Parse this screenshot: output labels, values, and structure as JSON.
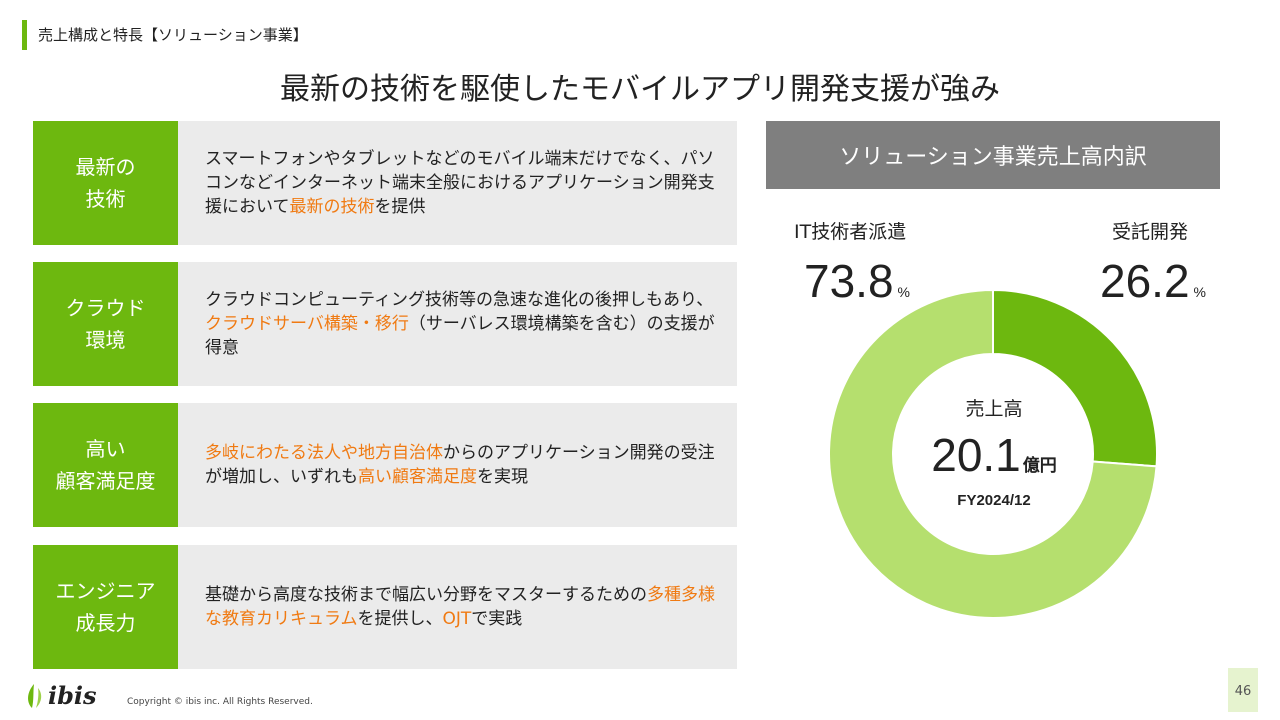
{
  "header": {
    "section_label": "売上構成と特長【ソリューション事業】",
    "title": "最新の技術を駆使したモバイルアプリ開発支援が強み"
  },
  "features": [
    {
      "label_lines": [
        "最新の",
        "技術"
      ],
      "text": [
        {
          "t": "スマートフォンやタブレットなどのモバイル端末だけでなく、パソコンなどインターネット端末全般におけるアプリケーション開発支援において",
          "hl": false
        },
        {
          "t": "最新の技術",
          "hl": true
        },
        {
          "t": "を提供",
          "hl": false
        }
      ]
    },
    {
      "label_lines": [
        "クラウド",
        "環境"
      ],
      "text": [
        {
          "t": "クラウドコンピューティング技術等の急速な進化の後押しもあり、",
          "hl": false
        },
        {
          "t": "クラウドサーバ構築・移行",
          "hl": true
        },
        {
          "t": "（サーバレス環境構築を含む）の支援が得意",
          "hl": false
        }
      ]
    },
    {
      "label_lines": [
        "高い",
        "顧客満足度"
      ],
      "text": [
        {
          "t": "多岐にわたる法人や地方自治体",
          "hl": true
        },
        {
          "t": "からのアプリケーション開発の受注が増加し、いずれも",
          "hl": false
        },
        {
          "t": "高い顧客満足度",
          "hl": true
        },
        {
          "t": "を実現",
          "hl": false
        }
      ]
    },
    {
      "label_lines": [
        "エンジニア",
        "成長力"
      ],
      "text": [
        {
          "t": "基礎から高度な技術まで幅広い分野をマスターするための",
          "hl": false
        },
        {
          "t": "多種多様な教育カリキュラム",
          "hl": true
        },
        {
          "t": "を提供し、",
          "hl": false
        },
        {
          "t": "OJT",
          "hl": true
        },
        {
          "t": "で実践",
          "hl": false
        }
      ]
    }
  ],
  "chart_data": {
    "type": "pie",
    "title": "ソリューション事業売上高内訳",
    "slices": [
      {
        "name": "IT技術者派遣",
        "value": 73.8,
        "unit": "%",
        "color": "#b5df6e"
      },
      {
        "name": "受託開発",
        "value": 26.2,
        "unit": "%",
        "color": "#6db80f"
      }
    ],
    "center": {
      "label": "売上高",
      "value": "20.1",
      "unit": "億円",
      "period": "FY2024/12"
    }
  },
  "footer": {
    "logo_text": "ibis",
    "copyright": "Copyright © ibis inc. All Rights Reserved.",
    "page_number": "46"
  },
  "colors": {
    "accent_green": "#6db80f",
    "light_green": "#b5df6e",
    "highlight_orange": "#f07a12",
    "header_gray": "#7f7f7f",
    "row_gray": "#ebebeb"
  }
}
